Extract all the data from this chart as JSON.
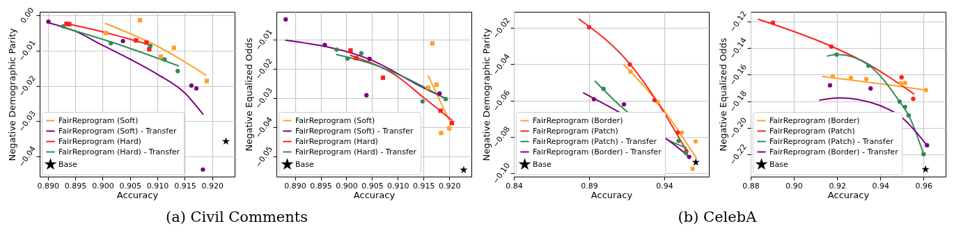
{
  "chart_data": [
    {
      "type": "scatter",
      "xlabel": "Accuracy",
      "ylabel": "Negative Demographic Parity",
      "annotations": [
        "(a) Civil Comments"
      ],
      "legend": "bottom left",
      "grid": true,
      "xlim": [
        0.8885,
        0.9241
      ],
      "ylim": [
        -0.0457,
        0.001
      ],
      "xticks": [
        {
          "value": 0.89,
          "label": "0.890"
        },
        {
          "value": 0.895,
          "label": "0.895"
        },
        {
          "value": 0.9,
          "label": "0.900"
        },
        {
          "value": 0.905,
          "label": "0.905"
        },
        {
          "value": 0.91,
          "label": "0.910"
        },
        {
          "value": 0.915,
          "label": "0.915"
        },
        {
          "value": 0.92,
          "label": "0.920"
        }
      ],
      "yticks": [
        {
          "value": 0,
          "label": "0.00"
        },
        {
          "value": -0.01,
          "label": "−0.01"
        },
        {
          "value": -0.02,
          "label": "−0.02"
        },
        {
          "value": -0.03,
          "label": "−0.03"
        },
        {
          "value": -0.04,
          "label": "−0.04"
        }
      ],
      "series": [
        {
          "type": "line",
          "name": "FairReprogram (Soft)",
          "color": "#ffa028",
          "x": [
            0.9005,
            0.9102,
            0.9188
          ],
          "values": [
            -0.0023,
            -0.0089,
            -0.0169
          ]
        },
        {
          "type": "line",
          "name": "FairReprogram (Soft) - Transfer",
          "color": "#800080",
          "x": [
            0.8901,
            0.895,
            0.9,
            0.905,
            0.91,
            0.915,
            0.9183
          ],
          "values": [
            -0.0021,
            -0.0045,
            -0.0085,
            -0.0124,
            -0.0167,
            -0.022,
            -0.028
          ]
        },
        {
          "type": "line",
          "name": "FairReprogram (Hard)",
          "color": "#ff1f1f",
          "x": [
            0.8933,
            0.9006,
            0.9085
          ],
          "values": [
            -0.0023,
            -0.0049,
            -0.0083
          ]
        },
        {
          "type": "line",
          "name": "FairReprogram (Hard) - Transfer",
          "color": "#2e8b57",
          "x": [
            0.8925,
            0.9034,
            0.9138
          ],
          "values": [
            -0.0033,
            -0.0085,
            -0.0143
          ]
        },
        {
          "type": "scatter",
          "marker": "square",
          "color": "#ffa028",
          "x": [
            0.9006,
            0.9068,
            0.908,
            0.9106,
            0.913,
            0.919
          ],
          "values": [
            -0.005,
            -0.0014,
            null,
            -0.0117,
            -0.0092,
            -0.0186
          ]
        },
        {
          "type": "scatter",
          "marker": "circle",
          "color": "#800080",
          "x": [
            0.8901,
            0.9037,
            0.9162,
            0.9171,
            0.9183
          ],
          "values": [
            -0.0018,
            -0.0073,
            -0.0199,
            -0.0207,
            -0.0437
          ]
        },
        {
          "type": "scatter",
          "marker": "square",
          "color": "#ff1f1f",
          "x": [
            0.8934,
            0.8939,
            0.9061,
            0.908,
            0.9085
          ],
          "values": [
            -0.0024,
            -0.0025,
            -0.0071,
            -0.0077,
            -0.0096
          ]
        },
        {
          "type": "scatter",
          "marker": "circle",
          "color": "#2e8b57",
          "x": [
            0.8928,
            0.9015,
            0.9087,
            0.9113,
            0.9137
          ],
          "values": [
            -0.0031,
            -0.0079,
            -0.0087,
            -0.0125,
            -0.0158
          ]
        },
        {
          "type": "scatter",
          "marker": "star",
          "name": "Base",
          "color": "#000000",
          "x": [
            0.9225
          ],
          "values": [
            -0.0357
          ]
        }
      ]
    },
    {
      "type": "scatter",
      "xlabel": "Accuracy",
      "ylabel": "Negative Equalized Odds",
      "legend": "bottom left",
      "grid": true,
      "xlim": [
        0.8864,
        0.9243
      ],
      "ylim": [
        -0.0568,
        -0.0005
      ],
      "xticks": [
        {
          "value": 0.89,
          "label": "0.890"
        },
        {
          "value": 0.895,
          "label": "0.895"
        },
        {
          "value": 0.9,
          "label": "0.900"
        },
        {
          "value": 0.905,
          "label": "0.905"
        },
        {
          "value": 0.91,
          "label": "0.910"
        },
        {
          "value": 0.915,
          "label": "0.915"
        },
        {
          "value": 0.92,
          "label": "0.920"
        }
      ],
      "yticks": [
        {
          "value": -0.01,
          "label": "−0.01"
        },
        {
          "value": -0.02,
          "label": "−0.02"
        },
        {
          "value": -0.03,
          "label": "−0.03"
        },
        {
          "value": -0.04,
          "label": "−0.04"
        },
        {
          "value": -0.05,
          "label": "−0.05"
        }
      ],
      "series": [
        {
          "type": "line",
          "name": "FairReprogram (Soft)",
          "color": "#ffa028",
          "x": [
            0.9159,
            0.9199
          ],
          "values": [
            -0.0224,
            -0.0373
          ]
        },
        {
          "type": "line",
          "name": "FairReprogram (Soft) - Transfer",
          "color": "#800080",
          "x": [
            0.8882,
            0.905,
            0.915,
            0.9194
          ],
          "values": [
            -0.0102,
            -0.0171,
            -0.0265,
            -0.0302
          ]
        },
        {
          "type": "line",
          "name": "FairReprogram (Hard)",
          "color": "#ff1f1f",
          "x": [
            0.9008,
            0.91,
            0.915,
            0.9205
          ],
          "values": [
            -0.0154,
            -0.0227,
            -0.0298,
            -0.0375
          ]
        },
        {
          "type": "line",
          "name": "FairReprogram (Hard) - Transfer",
          "color": "#2e8b57",
          "x": [
            0.8981,
            0.905,
            0.9193
          ],
          "values": [
            -0.0151,
            -0.0183,
            -0.0302
          ]
        },
        {
          "type": "scatter",
          "marker": "square",
          "color": "#ffa028",
          "x": [
            0.9159,
            0.9167,
            0.9175,
            0.9184,
            0.92
          ],
          "values": [
            -0.0264,
            -0.0113,
            -0.0254,
            -0.0419,
            -0.0403
          ]
        },
        {
          "type": "scatter",
          "marker": "circle",
          "color": "#800080",
          "x": [
            0.8882,
            0.8958,
            0.9039,
            0.9045,
            0.9181
          ],
          "values": [
            -0.0031,
            -0.0118,
            -0.029,
            -0.0166,
            -0.0284
          ]
        },
        {
          "type": "scatter",
          "marker": "square",
          "color": "#ff1f1f",
          "x": [
            0.9008,
            0.9019,
            0.9071,
            0.9183,
            0.9205
          ],
          "values": [
            -0.0137,
            -0.0163,
            -0.023,
            -0.0343,
            -0.0385
          ]
        },
        {
          "type": "scatter",
          "marker": "circle",
          "color": "#2e8b57",
          "x": [
            0.8981,
            0.9002,
            0.9029,
            0.9148,
            0.9193
          ],
          "values": [
            -0.0134,
            -0.0165,
            -0.0147,
            -0.0311,
            -0.0303
          ]
        },
        {
          "type": "scatter",
          "marker": "star",
          "name": "Base",
          "color": "#000000",
          "x": [
            0.9228
          ],
          "values": [
            -0.0545
          ]
        }
      ]
    },
    {
      "type": "scatter",
      "xlabel": "Accuracy",
      "ylabel": "Negative Demographic Parity",
      "annotations": [
        "(b) CelebA"
      ],
      "legend": "bottom left",
      "grid": true,
      "xlim": [
        0.84,
        0.9697
      ],
      "ylim": [
        -0.1019,
        -0.0111
      ],
      "xticks": [
        0.84,
        0.89,
        0.94
      ],
      "yticks": [
        {
          "value": -0.02,
          "label": "−0.02"
        },
        {
          "value": -0.04,
          "label": "−0.04"
        },
        {
          "value": -0.06,
          "label": "−0.06"
        },
        {
          "value": -0.08,
          "label": "−0.08"
        },
        {
          "value": -0.1,
          "label": "−0.10"
        }
      ],
      "series": [
        {
          "type": "line",
          "name": "FairReprogram (Border)",
          "color": "#ffa028",
          "x": [
            0.9132,
            0.9369,
            0.9614
          ],
          "values": [
            -0.0403,
            -0.0622,
            -0.0917
          ]
        },
        {
          "type": "line",
          "name": "FairReprogram (Patch)",
          "color": "#ff1f1f",
          "x": [
            0.8833,
            0.9171,
            0.9353,
            0.9547
          ],
          "values": [
            -0.0151,
            -0.0398,
            -0.0606,
            -0.0875
          ]
        },
        {
          "type": "line",
          "name": "FairReprogram (Patch) - Transfer",
          "color": "#2e8b57",
          "x": [
            0.894,
            0.912,
            0.9446,
            0.9547
          ],
          "values": [
            -0.0493,
            -0.0638,
            -0.0826,
            -0.086
          ]
        },
        {
          "type": "line",
          "name": "FairReprogram (Border) - Transfer",
          "color": "#800080",
          "x": [
            0.8863,
            0.909,
            0.9446,
            0.9566
          ],
          "values": [
            -0.0558,
            -0.0659,
            -0.083,
            -0.091
          ]
        },
        {
          "type": "scatter",
          "marker": "circle",
          "color": "#ffa028",
          "x": [
            0.9176,
            0.9357,
            0.9518,
            0.9589,
            0.9609
          ],
          "values": [
            -0.0441,
            -0.0608,
            -0.0776,
            -0.0976,
            -0.0825
          ]
        },
        {
          "type": "scatter",
          "marker": "circle",
          "color": "#ff1f1f",
          "x": [
            0.89,
            0.9171,
            0.9335,
            0.949,
            0.9547
          ],
          "values": [
            -0.0196,
            -0.0401,
            -0.0598,
            -0.0776,
            -0.0879
          ]
        },
        {
          "type": "scatter",
          "marker": "circle",
          "color": "#2e8b57",
          "x": [
            0.8996,
            0.9496,
            0.9544
          ],
          "values": [
            -0.0535,
            -0.0822,
            -0.0888
          ]
        },
        {
          "type": "scatter",
          "marker": "circle",
          "color": "#800080",
          "x": [
            0.8932,
            0.9132,
            0.9566
          ],
          "values": [
            -0.0592,
            -0.0621,
            -0.091
          ]
        },
        {
          "type": "scatter",
          "marker": "star",
          "name": "Base",
          "color": "#000000",
          "x": [
            0.961
          ],
          "values": [
            -0.094
          ]
        }
      ]
    },
    {
      "type": "scatter",
      "xlabel": "Accuracy",
      "ylabel": "Negative Equalized Odds",
      "legend": "bottom left",
      "grid": true,
      "xlim": [
        0.88,
        0.9702
      ],
      "ylim": [
        -0.2367,
        -0.1127
      ],
      "xticks": [
        0.88,
        {
          "value": 0.9,
          "label": "0.90"
        },
        0.92,
        0.94,
        0.96
      ],
      "yticks": [
        {
          "value": -0.12,
          "label": "−0.12"
        },
        {
          "value": -0.14,
          "label": "−0.14"
        },
        {
          "value": -0.16,
          "label": "−0.16"
        },
        {
          "value": -0.18,
          "label": "−0.18"
        },
        {
          "value": -0.2,
          "label": "−0.20"
        },
        {
          "value": -0.22,
          "label": "−0.22"
        }
      ],
      "series": [
        {
          "type": "line",
          "name": "FairReprogram (Border)",
          "color": "#ffa028",
          "x": [
            0.9133,
            0.937,
            0.9611
          ],
          "values": [
            -0.1614,
            -0.1662,
            -0.1716
          ]
        },
        {
          "type": "line",
          "name": "FairReprogram (Patch)",
          "color": "#ff1f1f",
          "x": [
            0.8836,
            0.9173,
            0.9343,
            0.9555
          ],
          "values": [
            -0.1183,
            -0.1386,
            -0.152,
            -0.1745
          ]
        },
        {
          "type": "line",
          "name": "FairReprogram (Patch) - Transfer",
          "color": "#2e8b57",
          "x": [
            0.9155,
            0.9203,
            0.9345,
            0.9489,
            0.9531,
            0.96
          ],
          "values": [
            -0.146,
            -0.1448,
            -0.1527,
            -0.1803,
            -0.1906,
            -0.2198
          ]
        },
        {
          "type": "line",
          "name": "FairReprogram (Border) - Transfer",
          "color": "#800080",
          "x": [
            0.912,
            0.9214,
            0.9396,
            0.9503,
            0.9616
          ],
          "values": [
            -0.1791,
            -0.1774,
            -0.1831,
            -0.1927,
            -0.2131
          ]
        },
        {
          "type": "scatter",
          "marker": "circle",
          "color": "#ffa028",
          "x": [
            0.918,
            0.9264,
            0.9335,
            0.9495,
            0.9514,
            0.9611
          ],
          "values": [
            -0.1612,
            -0.1624,
            -0.1633,
            -0.1666,
            -0.1663,
            -0.1716
          ]
        },
        {
          "type": "scatter",
          "marker": "circle",
          "color": "#ff1f1f",
          "x": [
            0.8903,
            0.9173,
            0.9343,
            0.9498,
            0.9552
          ],
          "values": [
            -0.1209,
            -0.1388,
            null,
            -0.162,
            -0.1782
          ]
        },
        {
          "type": "scatter",
          "marker": "circle",
          "color": "#2e8b57",
          "x": [
            0.9198,
            0.9345,
            0.9489,
            0.9514,
            0.9531,
            0.96
          ],
          "values": [
            -0.1449,
            -0.1533,
            -0.1803,
            -0.1843,
            -0.1906,
            -0.2198
          ]
        },
        {
          "type": "scatter",
          "marker": "circle",
          "color": "#800080",
          "x": [
            0.9167,
            0.9355,
            0.9616
          ],
          "values": [
            -0.168,
            -0.1704,
            -0.2131
          ]
        },
        {
          "type": "scatter",
          "marker": "star",
          "name": "Base",
          "color": "#000000",
          "x": [
            0.9609
          ],
          "values": [
            -0.2312
          ]
        }
      ]
    }
  ]
}
